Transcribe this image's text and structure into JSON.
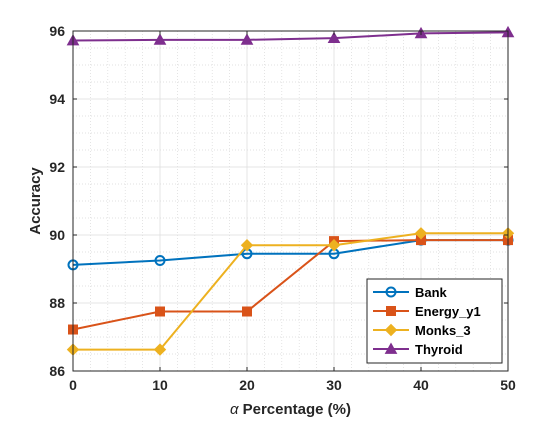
{
  "chart_data": {
    "type": "line",
    "title": "",
    "xlabel_symbol": "α",
    "xlabel": "Percentage (%)",
    "ylabel": "Accuracy",
    "x": [
      0,
      10,
      20,
      30,
      40,
      50
    ],
    "xlim": [
      0,
      50
    ],
    "ylim": [
      86,
      96
    ],
    "xticks": [
      "0",
      "10",
      "20",
      "30",
      "40",
      "50"
    ],
    "yticks": [
      "86",
      "88",
      "90",
      "92",
      "94",
      "96"
    ],
    "grid": true,
    "minor_grid": true,
    "legend_position": "bottom-right",
    "series": [
      {
        "name": "Bank",
        "color": "#0072BD",
        "marker": "circle",
        "values": [
          89.12,
          89.25,
          89.45,
          89.45,
          89.85,
          89.85
        ]
      },
      {
        "name": "Energy_y1",
        "color": "#D95319",
        "marker": "square",
        "values": [
          87.22,
          87.75,
          87.75,
          89.82,
          89.85,
          89.85
        ]
      },
      {
        "name": "Monks_3",
        "color": "#EDB120",
        "marker": "diamond",
        "values": [
          86.63,
          86.63,
          89.7,
          89.7,
          90.05,
          90.05
        ]
      },
      {
        "name": "Thyroid",
        "color": "#7E2F8E",
        "marker": "triangle",
        "values": [
          95.72,
          95.74,
          95.74,
          95.79,
          95.93,
          95.96
        ]
      }
    ]
  }
}
